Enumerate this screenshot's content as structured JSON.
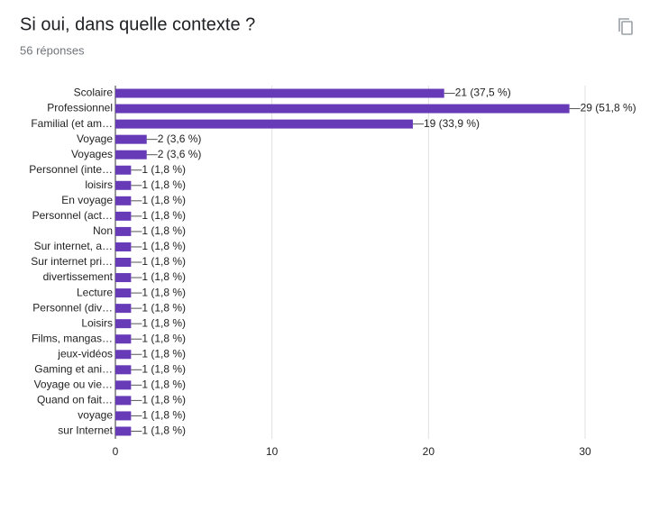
{
  "chart_data": {
    "type": "bar",
    "orientation": "horizontal",
    "title": "Si oui, dans quelle contexte ?",
    "subtitle": "56 réponses",
    "categories": [
      "Scolaire",
      "Professionnel",
      "Familial (et am…",
      "Voyage",
      "Voyages",
      "Personnel (inte…",
      "loisirs",
      "En voyage",
      "Personnel (act…",
      "Non",
      "Sur internet, a…",
      "Sur internet pri…",
      "divertissement",
      "Lecture",
      "Personnel (div…",
      "Loisirs",
      "Films, mangas…",
      "jeux-vidéos",
      "Gaming et ani…",
      "Voyage ou vie…",
      "Quand on fait…",
      "voyage",
      "sur Internet"
    ],
    "values": [
      21,
      29,
      19,
      2,
      2,
      1,
      1,
      1,
      1,
      1,
      1,
      1,
      1,
      1,
      1,
      1,
      1,
      1,
      1,
      1,
      1,
      1,
      1
    ],
    "value_labels": [
      "21 (37,5 %)",
      "29 (51,8 %)",
      "19 (33,9 %)",
      "2 (3,6 %)",
      "2 (3,6 %)",
      "1 (1,8 %)",
      "1 (1,8 %)",
      "1 (1,8 %)",
      "1 (1,8 %)",
      "1 (1,8 %)",
      "1 (1,8 %)",
      "1 (1,8 %)",
      "1 (1,8 %)",
      "1 (1,8 %)",
      "1 (1,8 %)",
      "1 (1,8 %)",
      "1 (1,8 %)",
      "1 (1,8 %)",
      "1 (1,8 %)",
      "1 (1,8 %)",
      "1 (1,8 %)",
      "1 (1,8 %)",
      "1 (1,8 %)"
    ],
    "color": "#673ab7",
    "xlim": [
      0,
      30
    ],
    "xticks": [
      0,
      10,
      20,
      30
    ],
    "grid": true
  }
}
